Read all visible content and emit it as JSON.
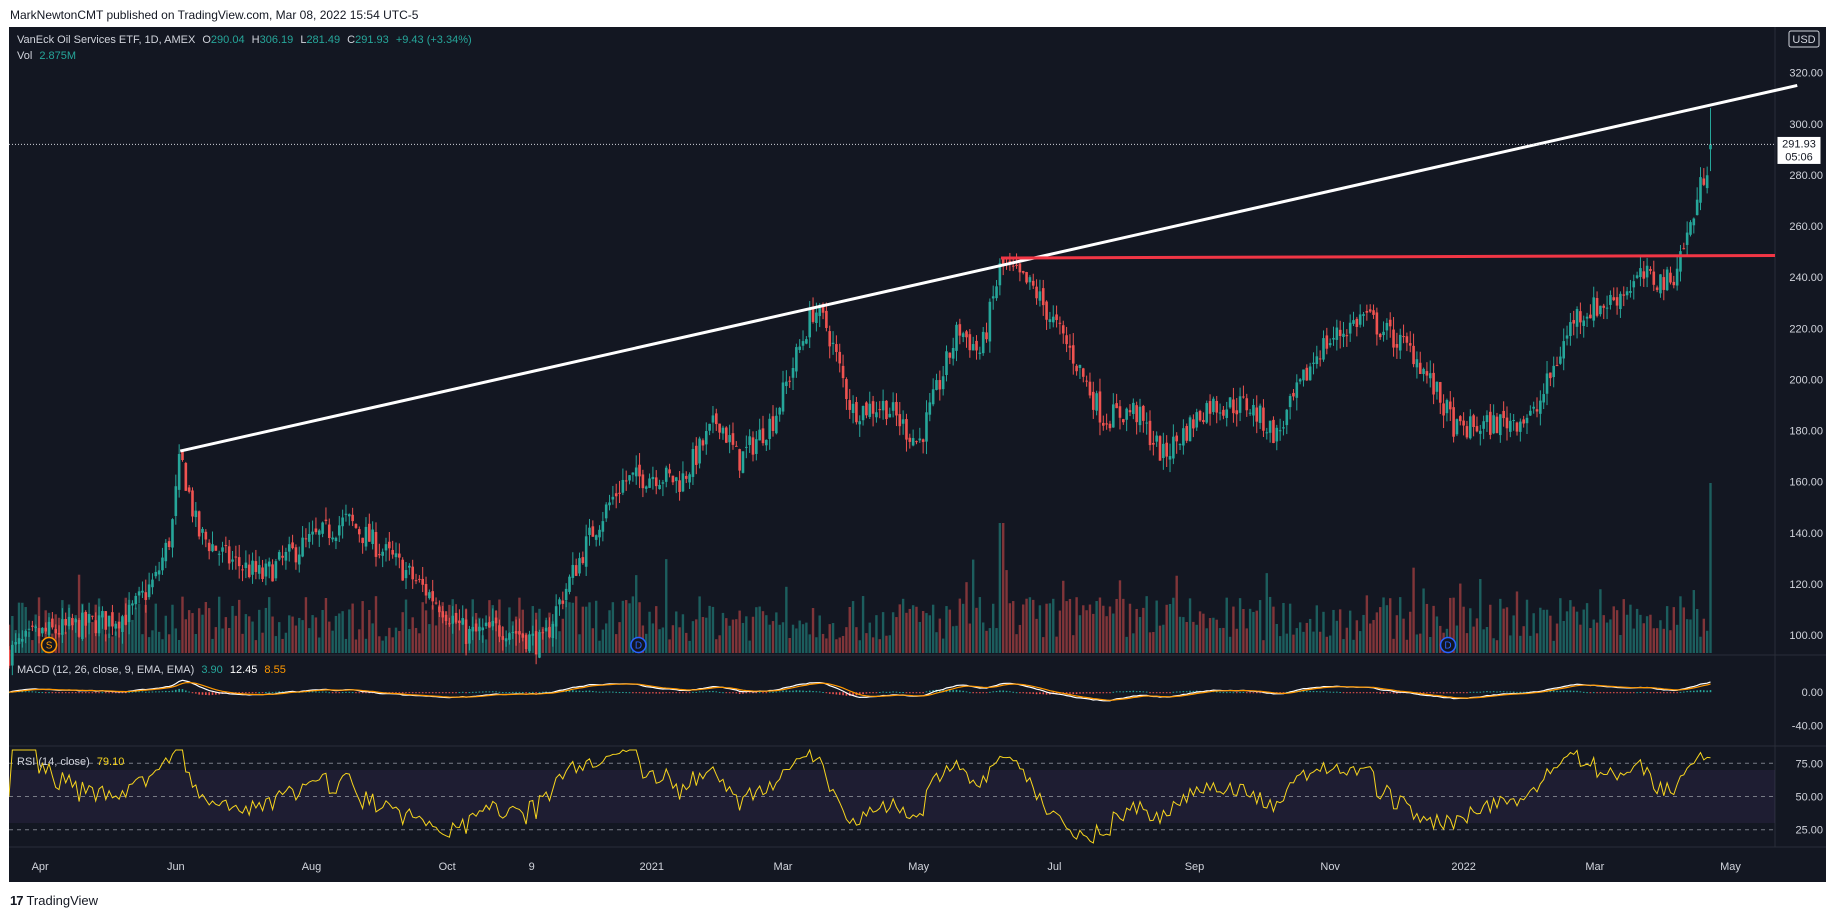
{
  "header": {
    "publisher_line": "MarkNewtonCMT published on TradingView.com, Mar 08, 2022 15:54 UTC-5"
  },
  "legend": {
    "symbol": "VanEck Oil Services ETF, 1D, AMEX",
    "o_label": "O",
    "o": "290.04",
    "h_label": "H",
    "h": "306.19",
    "l_label": "L",
    "l": "281.49",
    "c_label": "C",
    "c": "291.93",
    "change": "+9.43 (+3.34%)",
    "vol_label": "Vol",
    "vol": "2.875M"
  },
  "macd_legend": {
    "label": "MACD (12, 26, close, 9, EMA, EMA)",
    "hist": "3.90",
    "macd": "12.45",
    "signal": "8.55"
  },
  "rsi_legend": {
    "label": "RSI (14, close)",
    "value": "79.10"
  },
  "currency": "USD",
  "price_tag": {
    "price": "291.93",
    "countdown": "05:06"
  },
  "footer": {
    "brand": "TradingView",
    "logo_mark": "17"
  },
  "colors": {
    "up": "#26a69a",
    "down": "#ef5350",
    "bg": "#131722",
    "trendline": "#ffffff",
    "resistance": "#f23645",
    "macd": "#ffffff",
    "signal": "#ff9800",
    "rsi": "#f7d51e"
  },
  "chart_data": {
    "type": "candlestick",
    "ticker": "AMEX",
    "timeframe": "1D",
    "price_axis": {
      "min": 90,
      "max": 330,
      "ticks": [
        100,
        120,
        140,
        160,
        180,
        200,
        220,
        240,
        260,
        280,
        300,
        320
      ]
    },
    "x_axis": {
      "labels": [
        "Apr",
        "Jun",
        "Aug",
        "Oct",
        "9",
        "2021",
        "Mar",
        "May",
        "Jul",
        "Sep",
        "Nov",
        "2022",
        "Mar",
        "May"
      ],
      "label_days": [
        0,
        61,
        122,
        183,
        221,
        275,
        334,
        395,
        456,
        519,
        580,
        640,
        699,
        760
      ],
      "range_days": [
        -14,
        780
      ]
    },
    "anchors": [
      {
        "day": -14,
        "price": 93
      },
      {
        "day": -2,
        "price": 100
      },
      {
        "day": 20,
        "price": 104
      },
      {
        "day": 40,
        "price": 108
      },
      {
        "day": 52,
        "price": 122
      },
      {
        "day": 59,
        "price": 140
      },
      {
        "day": 63,
        "price": 170
      },
      {
        "day": 67,
        "price": 155
      },
      {
        "day": 71,
        "price": 140
      },
      {
        "day": 84,
        "price": 130
      },
      {
        "day": 100,
        "price": 123
      },
      {
        "day": 118,
        "price": 135
      },
      {
        "day": 138,
        "price": 145
      },
      {
        "day": 158,
        "price": 130
      },
      {
        "day": 180,
        "price": 112
      },
      {
        "day": 192,
        "price": 100
      },
      {
        "day": 210,
        "price": 103
      },
      {
        "day": 226,
        "price": 96
      },
      {
        "day": 232,
        "price": 110
      },
      {
        "day": 248,
        "price": 140
      },
      {
        "day": 262,
        "price": 160
      },
      {
        "day": 276,
        "price": 163
      },
      {
        "day": 288,
        "price": 160
      },
      {
        "day": 305,
        "price": 185
      },
      {
        "day": 314,
        "price": 168
      },
      {
        "day": 330,
        "price": 185
      },
      {
        "day": 348,
        "price": 228
      },
      {
        "day": 354,
        "price": 220
      },
      {
        "day": 365,
        "price": 188
      },
      {
        "day": 380,
        "price": 190
      },
      {
        "day": 395,
        "price": 175
      },
      {
        "day": 413,
        "price": 220
      },
      {
        "day": 423,
        "price": 210
      },
      {
        "day": 432,
        "price": 245
      },
      {
        "day": 447,
        "price": 235
      },
      {
        "day": 464,
        "price": 210
      },
      {
        "day": 478,
        "price": 185
      },
      {
        "day": 492,
        "price": 188
      },
      {
        "day": 505,
        "price": 170
      },
      {
        "day": 525,
        "price": 190
      },
      {
        "day": 543,
        "price": 190
      },
      {
        "day": 556,
        "price": 178
      },
      {
        "day": 575,
        "price": 212
      },
      {
        "day": 595,
        "price": 225
      },
      {
        "day": 618,
        "price": 210
      },
      {
        "day": 637,
        "price": 180
      },
      {
        "day": 650,
        "price": 182
      },
      {
        "day": 672,
        "price": 186
      },
      {
        "day": 690,
        "price": 225
      },
      {
        "day": 705,
        "price": 230
      },
      {
        "day": 720,
        "price": 240
      },
      {
        "day": 733,
        "price": 238
      },
      {
        "day": 742,
        "price": 260
      },
      {
        "day": 748,
        "price": 280
      },
      {
        "day": 752,
        "price": 291.93
      }
    ],
    "last_bar": {
      "open": 290.04,
      "high": 306.19,
      "low": 281.49,
      "close": 291.93,
      "change": 9.43,
      "change_pct": 3.34,
      "volume": "2.875M"
    },
    "drawings": {
      "trendline": {
        "from": {
          "day": 63,
          "price": 172
        },
        "to": {
          "day": 790,
          "price": 315
        }
      },
      "resistance": {
        "from": {
          "day": 432,
          "price": 247.5
        },
        "to": {
          "day": 800,
          "price": 248.5
        }
      }
    },
    "event_markers": [
      {
        "day": 4,
        "label": "S"
      },
      {
        "day": 269,
        "label": "D"
      },
      {
        "day": 633,
        "label": "D"
      }
    ],
    "volume": {
      "visible": true,
      "spike_days": [
        432,
        752
      ]
    },
    "macd": {
      "axis_ticks": [
        0.0,
        -40.0
      ],
      "axis_tick_labels": [
        "0.00",
        "-40.00"
      ],
      "hist": 3.9,
      "macd": 12.45,
      "signal": 8.55
    },
    "rsi": {
      "axis_ticks": [
        75,
        50,
        25
      ],
      "axis_tick_labels": [
        "75.00",
        "50.00",
        "25.00"
      ],
      "value": 79.1,
      "band": [
        30,
        70
      ]
    }
  }
}
